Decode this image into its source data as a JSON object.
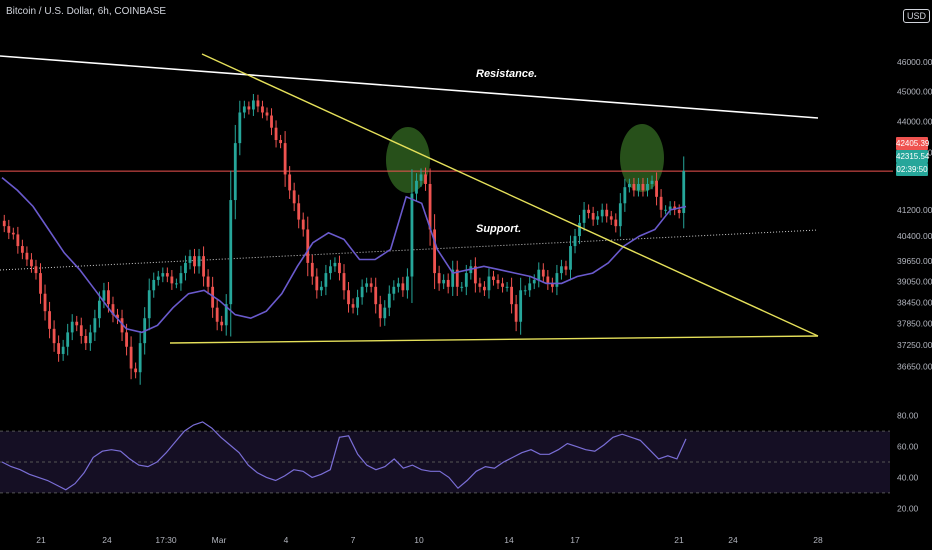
{
  "header": {
    "title": "Bitcoin / U.S. Dollar, 6h, COINBASE",
    "currency": "USD"
  },
  "annotations": {
    "resistance": "Resistance.",
    "support": "Support."
  },
  "price_tags": {
    "red": "42405.39",
    "green": "42315.54",
    "timer": "02:39:50"
  },
  "colors": {
    "background": "#000000",
    "up": "#26a69a",
    "down": "#ef5350",
    "ma": "#6a5acd",
    "trend": "#e5e05a",
    "resistance_line": "#ffffff",
    "price_line": "#ef5350",
    "rsi": "#7a6ed6",
    "highlight": "#2e5e1e"
  },
  "chart_data": [
    {
      "type": "candlestick",
      "title": "Bitcoin / U.S. Dollar, 6h, COINBASE",
      "y_scale": "log",
      "ylim": [
        36100,
        46900
      ],
      "y_ticks": [
        46000,
        45000,
        44000,
        43000,
        41200,
        40400,
        39650,
        39050,
        38450,
        37850,
        37250,
        36650
      ],
      "y_tick_labels": [
        "46000.00",
        "45000.00",
        "44000.00",
        "43000.00",
        "41200.00",
        "40400.00",
        "39650.00",
        "39050.00",
        "38450.00",
        "37850.00",
        "37250.00",
        "36650.00"
      ],
      "x_tick_labels": [
        "21",
        "24",
        "17:30",
        "Mar",
        "4",
        "7",
        "10",
        "14",
        "17",
        "21",
        "24",
        "28"
      ],
      "grid": false,
      "series": [
        {
          "name": "BTCUSD",
          "closes": [
            40700,
            40500,
            40450,
            40100,
            39900,
            39700,
            39500,
            39300,
            38700,
            38200,
            37700,
            37300,
            37000,
            37200,
            37600,
            37900,
            37800,
            37500,
            37300,
            37600,
            38000,
            38500,
            38800,
            38400,
            38100,
            38000,
            37600,
            37200,
            36600,
            36500,
            37300,
            38000,
            38800,
            39100,
            39200,
            39300,
            39200,
            39000,
            39000,
            39300,
            39600,
            39800,
            39500,
            39800,
            39200,
            38900,
            38300,
            37900,
            37800,
            38400,
            41500,
            43300,
            44300,
            44500,
            44400,
            44700,
            44500,
            44300,
            44200,
            43800,
            43400,
            43300,
            42300,
            41800,
            41400,
            40900,
            40600,
            39600,
            39200,
            38800,
            38900,
            39300,
            39500,
            39600,
            39300,
            38800,
            38400,
            38300,
            38600,
            38900,
            39000,
            38900,
            38400,
            38000,
            38300,
            38700,
            38900,
            39000,
            38800,
            39200,
            41700,
            42100,
            42300,
            42000,
            40600,
            39300,
            39000,
            39100,
            38900,
            39400,
            38900,
            38900,
            39300,
            39500,
            39000,
            38900,
            38800,
            39200,
            39100,
            39000,
            38900,
            38900,
            38400,
            37900,
            38800,
            38800,
            39000,
            39100,
            39400,
            39200,
            39000,
            38900,
            39300,
            39500,
            39400,
            40100,
            40400,
            40800,
            41200,
            41100,
            40900,
            41000,
            41200,
            41000,
            40900,
            40700,
            41400,
            41900,
            42000,
            41800,
            42000,
            41800,
            42000,
            42100,
            41600,
            41200,
            41200,
            41300,
            41200,
            41100,
            42405.39
          ]
        },
        {
          "name": "MA",
          "values": [
            42200,
            41800,
            41300,
            40600,
            39900,
            39400,
            38800,
            38200,
            37700,
            37600,
            37800,
            38300,
            38700,
            38800,
            38500,
            38100,
            38000,
            38200,
            38700,
            39500,
            40200,
            40500,
            40300,
            39700,
            39700,
            40000,
            41600,
            41400,
            40000,
            39300,
            39400,
            39500,
            39400,
            39300,
            39200,
            39000,
            39000,
            39200,
            39300,
            39600,
            40100,
            40400,
            40600,
            41200,
            41300
          ]
        },
        {
          "name": "RSI",
          "ylim": [
            15,
            85
          ],
          "y_ticks": [
            80,
            60,
            40,
            20
          ],
          "y_tick_labels": [
            "80.00",
            "60.00",
            "40.00",
            "20.00"
          ],
          "bands": [
            70,
            50,
            30
          ],
          "values": [
            50,
            47,
            45,
            42,
            40,
            38,
            35,
            32,
            36,
            43,
            53,
            57,
            58,
            57,
            52,
            48,
            47,
            50,
            56,
            63,
            70,
            74,
            76,
            72,
            66,
            61,
            56,
            48,
            43,
            40,
            38,
            41,
            45,
            44,
            40,
            42,
            45,
            66,
            67,
            55,
            48,
            45,
            47,
            52,
            46,
            48,
            45,
            44,
            44,
            40,
            33,
            38,
            44,
            47,
            46,
            50,
            53,
            56,
            58,
            55,
            55,
            58,
            62,
            60,
            58,
            57,
            61,
            66,
            68,
            66,
            64,
            58,
            52,
            54,
            52,
            65
          ]
        }
      ]
    }
  ]
}
